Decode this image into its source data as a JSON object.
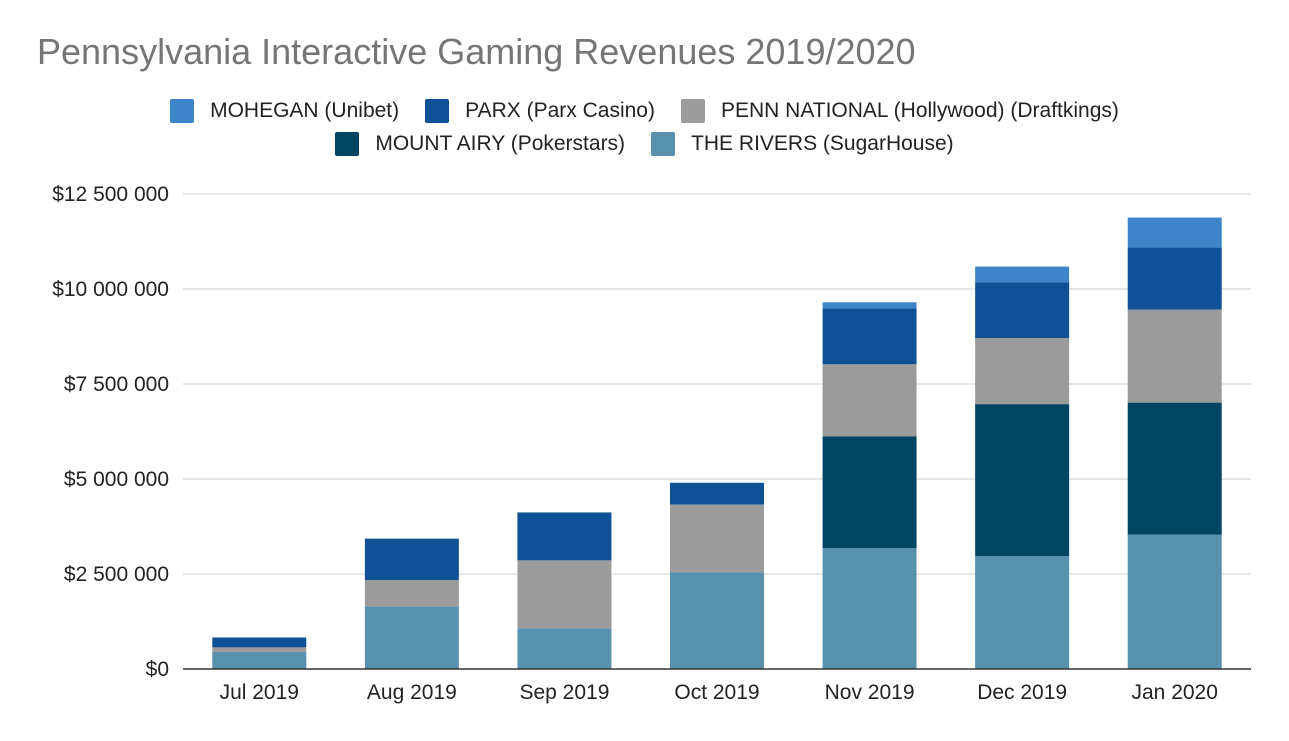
{
  "chart_data": {
    "type": "bar",
    "stacked": true,
    "title": "Pennsylvania Interactive Gaming Revenues 2019/2020",
    "xlabel": "",
    "ylabel": "",
    "categories": [
      "Jul 2019",
      "Aug 2019",
      "Sep 2019",
      "Oct 2019",
      "Nov 2019",
      "Dec 2019",
      "Jan 2020"
    ],
    "ylim": [
      0,
      12500000
    ],
    "yticks": [
      0,
      2500000,
      5000000,
      7500000,
      10000000,
      12500000
    ],
    "ytick_labels": [
      "$0",
      "$2 500 000",
      "$5 000 000",
      "$7 500 000",
      "$10 000 000",
      "$12 500 000"
    ],
    "grid": true,
    "legend_position": "top",
    "series": [
      {
        "name": "THE RIVERS (SugarHouse)",
        "color": "#5891AD",
        "values": [
          450000,
          1650000,
          1070000,
          2540000,
          3180000,
          2970000,
          3540000
        ]
      },
      {
        "name": "MOUNT AIRY (Pokerstars)",
        "color": "#004561",
        "values": [
          0,
          0,
          0,
          0,
          2940000,
          4000000,
          3470000
        ]
      },
      {
        "name": "PENN NATIONAL (Hollywood) (Draftkings)",
        "color": "#9B9B9B",
        "values": [
          120000,
          690000,
          1790000,
          1790000,
          1900000,
          1740000,
          2450000
        ]
      },
      {
        "name": "PARX (Parx Casino)",
        "color": "#0E5196",
        "values": [
          260000,
          1090000,
          1260000,
          570000,
          1470000,
          1470000,
          1630000
        ]
      },
      {
        "name": "MOHEGAN (Unibet)",
        "color": "#3C85C8",
        "values": [
          0,
          0,
          0,
          0,
          160000,
          410000,
          790000
        ]
      }
    ]
  },
  "legend_rows": [
    [
      "MOHEGAN (Unibet)",
      "PARX (Parx Casino)",
      "PENN NATIONAL (Hollywood) (Draftkings)"
    ],
    [
      "MOUNT AIRY (Pokerstars)",
      "THE RIVERS (SugarHouse)"
    ]
  ],
  "legend_colors": {
    "MOHEGAN (Unibet)": "#3C85C8",
    "PARX (Parx Casino)": "#0E5196",
    "PENN NATIONAL (Hollywood) (Draftkings)": "#9B9B9B",
    "MOUNT AIRY (Pokerstars)": "#004561",
    "THE RIVERS (SugarHouse)": "#5891AD"
  }
}
